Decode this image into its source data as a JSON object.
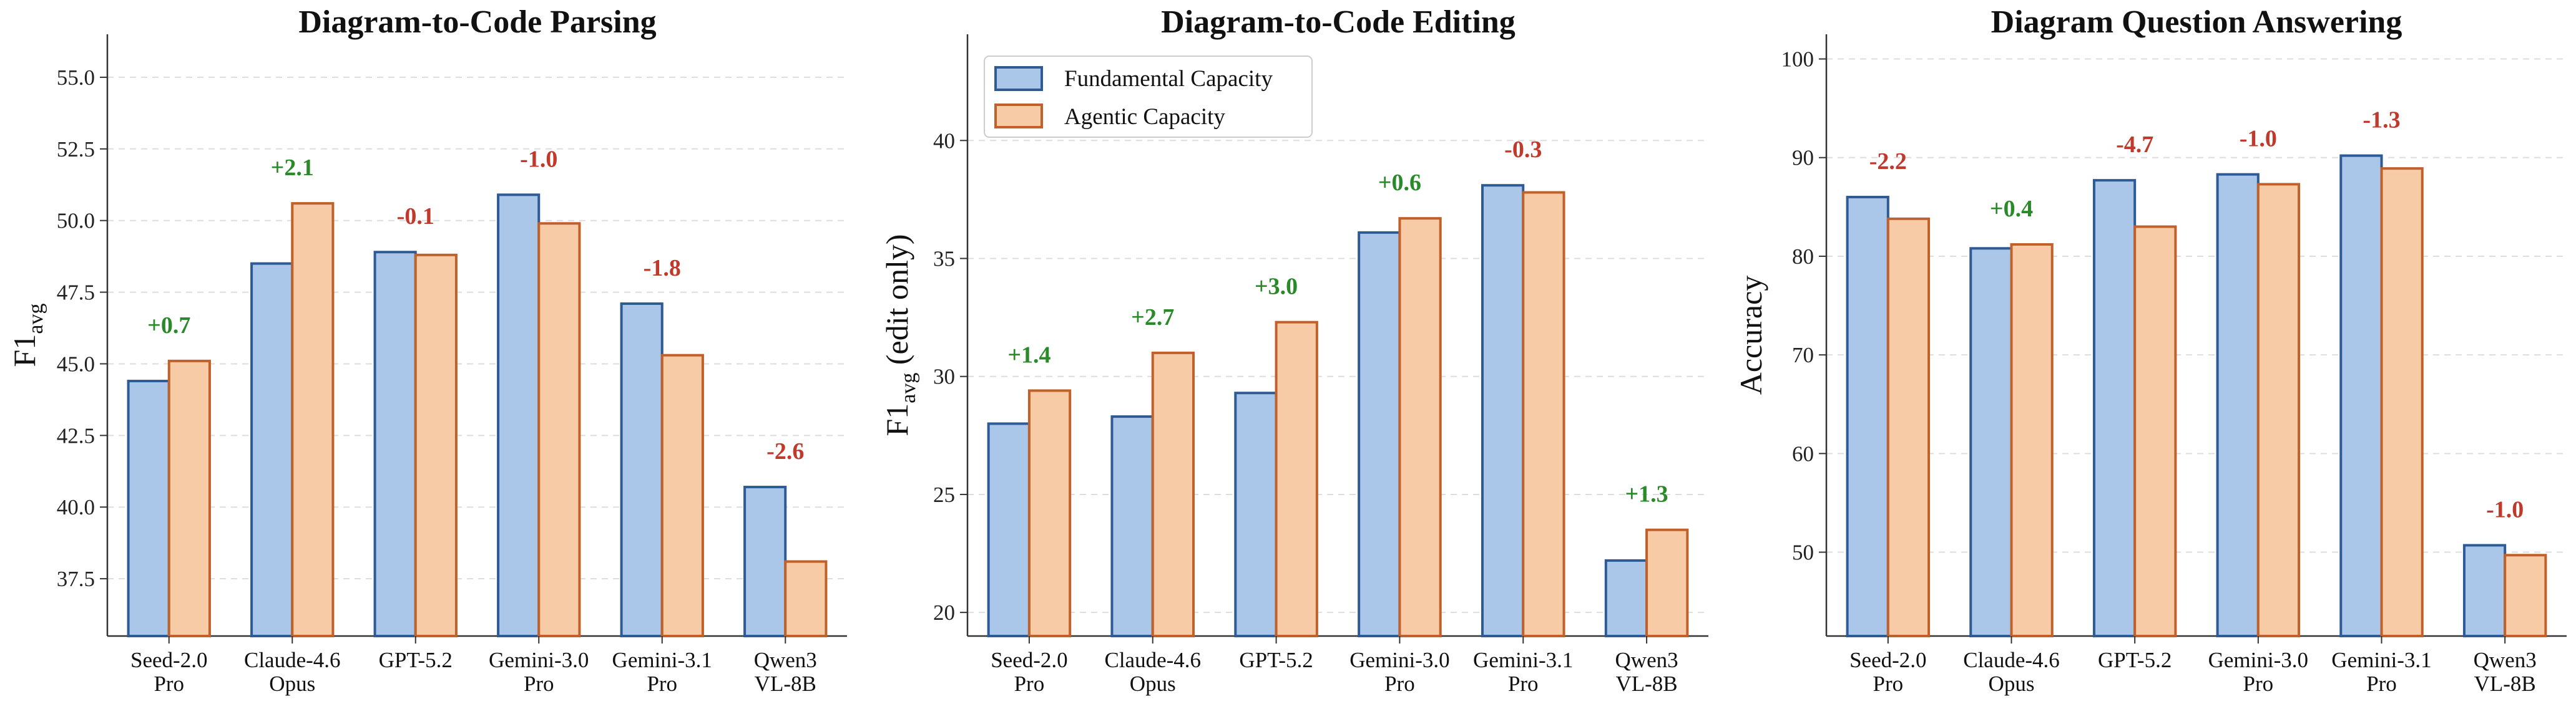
{
  "colors": {
    "fundamental_fill": "#aac7ea",
    "fundamental_edge": "#2e5a96",
    "agentic_fill": "#f6cba6",
    "agentic_edge": "#c0602a",
    "positive_delta": "#2a8a2a",
    "negative_delta": "#c0392b",
    "grid": "#dddddd",
    "axis": "#333333"
  },
  "legend": {
    "fundamental": "Fundamental Capacity",
    "agentic": "Agentic Capacity",
    "placement": "upper-left of middle panel"
  },
  "chart_data": [
    {
      "type": "bar",
      "title": "Diagram-to-Code Parsing",
      "ylabel_main": "F1",
      "ylabel_sub": "avg",
      "ylabel_suffix": "",
      "ylim": [
        35.5,
        56.5
      ],
      "yticks": [
        "37.5",
        "40.0",
        "42.5",
        "45.0",
        "47.5",
        "50.0",
        "52.5",
        "55.0"
      ],
      "categories": [
        [
          "Seed-2.0",
          "Pro"
        ],
        [
          "Claude-4.6",
          "Opus"
        ],
        [
          "GPT-5.2"
        ],
        [
          "Gemini-3.0",
          "Pro"
        ],
        [
          "Gemini-3.1",
          "Pro"
        ],
        [
          "Qwen3",
          "VL-8B"
        ]
      ],
      "series": [
        {
          "name": "Fundamental Capacity",
          "values": [
            44.4,
            48.5,
            48.9,
            50.9,
            47.1,
            40.7
          ]
        },
        {
          "name": "Agentic Capacity",
          "values": [
            45.1,
            50.6,
            48.8,
            49.9,
            45.3,
            38.1
          ]
        }
      ],
      "deltas": [
        "+0.7",
        "+2.1",
        "-0.1",
        "-1.0",
        "-1.8",
        "-2.6"
      ],
      "grid": "horizontal dashed"
    },
    {
      "type": "bar",
      "title": "Diagram-to-Code Editing",
      "ylabel_main": "F1",
      "ylabel_sub": "avg",
      "ylabel_suffix": " (edit only)",
      "ylim": [
        19,
        44.5
      ],
      "yticks": [
        "20",
        "25",
        "30",
        "35",
        "40"
      ],
      "categories": [
        [
          "Seed-2.0",
          "Pro"
        ],
        [
          "Claude-4.6",
          "Opus"
        ],
        [
          "GPT-5.2"
        ],
        [
          "Gemini-3.0",
          "Pro"
        ],
        [
          "Gemini-3.1",
          "Pro"
        ],
        [
          "Qwen3",
          "VL-8B"
        ]
      ],
      "series": [
        {
          "name": "Fundamental Capacity",
          "values": [
            28.0,
            28.3,
            29.3,
            36.1,
            38.1,
            22.2
          ]
        },
        {
          "name": "Agentic Capacity",
          "values": [
            29.4,
            31.0,
            32.3,
            36.7,
            37.8,
            23.5
          ]
        }
      ],
      "deltas": [
        "+1.4",
        "+2.7",
        "+3.0",
        "+0.6",
        "-0.3",
        "+1.3"
      ],
      "grid": "horizontal dashed"
    },
    {
      "type": "bar",
      "title": "Diagram Question Answering",
      "ylabel_main": "Accuracy",
      "ylabel_sub": "",
      "ylabel_suffix": "",
      "ylim": [
        41.5,
        102.5
      ],
      "yticks": [
        "50",
        "60",
        "70",
        "80",
        "90",
        "100"
      ],
      "categories": [
        [
          "Seed-2.0",
          "Pro"
        ],
        [
          "Claude-4.6",
          "Opus"
        ],
        [
          "GPT-5.2"
        ],
        [
          "Gemini-3.0",
          "Pro"
        ],
        [
          "Gemini-3.1",
          "Pro"
        ],
        [
          "Qwen3",
          "VL-8B"
        ]
      ],
      "series": [
        {
          "name": "Fundamental Capacity",
          "values": [
            86.0,
            80.8,
            87.7,
            88.3,
            90.2,
            50.7
          ]
        },
        {
          "name": "Agentic Capacity",
          "values": [
            83.8,
            81.2,
            83.0,
            87.3,
            88.9,
            49.7
          ]
        }
      ],
      "deltas": [
        "-2.2",
        "+0.4",
        "-4.7",
        "-1.0",
        "-1.3",
        "-1.0"
      ],
      "grid": "horizontal dashed"
    }
  ]
}
